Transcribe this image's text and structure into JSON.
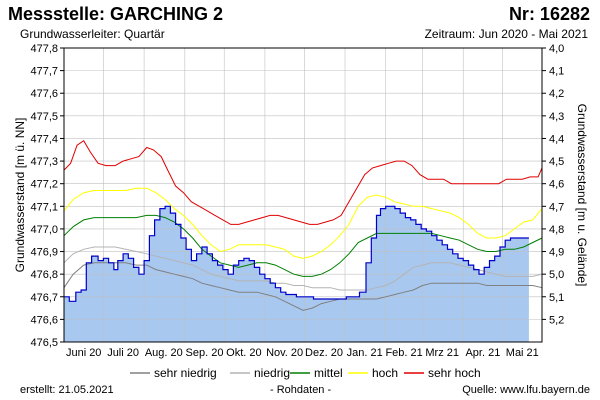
{
  "header": {
    "title": "Messstelle: GARCHING 2",
    "number": "Nr: 16282",
    "aquifer": "Grundwasserleiter: Quartär",
    "period": "Zeitraum: Jun 2020 - Mai 2021"
  },
  "footer": {
    "created": "erstellt:  21.05.2021",
    "raw": "- Rohdaten -",
    "source": "Quelle: www.lfu.bayern.de"
  },
  "chart_data": {
    "type": "line",
    "ylabel": "Grundwasserstand [m ü. NN]",
    "y2label": "Grundwasserstand [m u. Gelände]",
    "ylim": [
      476.5,
      477.8
    ],
    "y2lim": [
      5.3,
      4.0
    ],
    "xlim": [
      "2020-06-01",
      "2021-05-31"
    ],
    "yticks": [
      "476,5",
      "476,6",
      "476,7",
      "476,8",
      "476,9",
      "477,0",
      "477,1",
      "477,2",
      "477,3",
      "477,4",
      "477,5",
      "477,6",
      "477,7",
      "477,8"
    ],
    "y2ticks": [
      "4,0",
      "4,1",
      "4,2",
      "4,3",
      "4,4",
      "4,5",
      "4,6",
      "4,7",
      "4,8",
      "4,9",
      "5,0",
      "5,1",
      "5,2"
    ],
    "xticks": [
      "Juni 20",
      "Juli 20",
      "Aug. 20",
      "Sep. 20",
      "Okt. 20",
      "Nov. 20",
      "Dez. 20",
      "Jan. 21",
      "Feb. 21",
      "Mrz 21",
      "Apr. 21",
      "Mai 21"
    ],
    "grid": true,
    "legend_position": "bottom",
    "legend": [
      {
        "label": "sehr niedrig",
        "color": "#808080"
      },
      {
        "label": "niedrig",
        "color": "#b4b4b4"
      },
      {
        "label": "mittel",
        "color": "#008000"
      },
      {
        "label": "hoch",
        "color": "#ffff00"
      },
      {
        "label": "sehr hoch",
        "color": "#e00000"
      }
    ],
    "area_color": "#a8c8f0",
    "measured_color": "#0000c8",
    "series": [
      {
        "name": "Grundwasserstand",
        "role": "measured",
        "x": [
          "2020-06-01",
          "2020-06-05",
          "2020-06-10",
          "2020-06-14",
          "2020-06-18",
          "2020-06-22",
          "2020-06-27",
          "2020-07-01",
          "2020-07-05",
          "2020-07-09",
          "2020-07-12",
          "2020-07-16",
          "2020-07-20",
          "2020-07-24",
          "2020-07-28",
          "2020-08-01",
          "2020-08-05",
          "2020-08-09",
          "2020-08-13",
          "2020-08-17",
          "2020-08-21",
          "2020-08-25",
          "2020-08-29",
          "2020-09-02",
          "2020-09-06",
          "2020-09-10",
          "2020-09-14",
          "2020-09-18",
          "2020-09-22",
          "2020-09-26",
          "2020-09-30",
          "2020-10-04",
          "2020-10-08",
          "2020-10-12",
          "2020-10-16",
          "2020-10-20",
          "2020-10-24",
          "2020-10-28",
          "2020-11-01",
          "2020-11-05",
          "2020-11-09",
          "2020-11-13",
          "2020-11-17",
          "2020-11-21",
          "2020-11-25",
          "2020-11-29",
          "2020-12-03",
          "2020-12-08",
          "2020-12-13",
          "2020-12-18",
          "2020-12-23",
          "2020-12-28",
          "2021-01-02",
          "2021-01-07",
          "2021-01-12",
          "2021-01-17",
          "2021-01-21",
          "2021-01-25",
          "2021-01-28",
          "2021-02-01",
          "2021-02-04",
          "2021-02-08",
          "2021-02-12",
          "2021-02-16",
          "2021-02-20",
          "2021-02-24",
          "2021-02-28",
          "2021-03-04",
          "2021-03-08",
          "2021-03-12",
          "2021-03-16",
          "2021-03-20",
          "2021-03-24",
          "2021-03-28",
          "2021-04-01",
          "2021-04-05",
          "2021-04-09",
          "2021-04-13",
          "2021-04-17",
          "2021-04-21",
          "2021-04-25",
          "2021-04-29",
          "2021-05-03",
          "2021-05-07",
          "2021-05-10",
          "2021-05-13",
          "2021-05-16",
          "2021-05-19",
          "2021-05-21"
        ],
        "y": [
          476.7,
          476.68,
          476.72,
          476.73,
          476.85,
          476.88,
          476.86,
          476.87,
          476.85,
          476.82,
          476.86,
          476.89,
          476.87,
          476.83,
          476.8,
          476.86,
          476.97,
          477.04,
          477.09,
          477.1,
          477.07,
          477.02,
          476.96,
          476.91,
          476.86,
          476.89,
          476.92,
          476.89,
          476.86,
          476.84,
          476.82,
          476.8,
          476.84,
          476.86,
          476.87,
          476.86,
          476.83,
          476.8,
          476.78,
          476.76,
          476.74,
          476.72,
          476.71,
          476.71,
          476.7,
          476.7,
          476.7,
          476.69,
          476.69,
          476.69,
          476.69,
          476.69,
          476.7,
          476.7,
          476.72,
          476.85,
          476.96,
          477.06,
          477.09,
          477.1,
          477.1,
          477.09,
          477.07,
          477.05,
          477.04,
          477.02,
          477.0,
          476.99,
          476.97,
          476.95,
          476.93,
          476.91,
          476.89,
          476.87,
          476.86,
          476.84,
          476.82,
          476.8,
          476.83,
          476.86,
          476.88,
          476.92,
          476.95,
          476.96,
          476.96,
          476.96,
          476.96,
          476.96,
          476.96
        ]
      },
      {
        "name": "sehr hoch",
        "role": "sehr hoch",
        "x": [
          "2020-06-01",
          "2020-06-06",
          "2020-06-11",
          "2020-06-16",
          "2020-06-21",
          "2020-06-27",
          "2020-07-03",
          "2020-07-10",
          "2020-07-16",
          "2020-07-22",
          "2020-07-28",
          "2020-08-03",
          "2020-08-08",
          "2020-08-14",
          "2020-08-19",
          "2020-08-25",
          "2020-08-31",
          "2020-09-06",
          "2020-09-12",
          "2020-09-18",
          "2020-09-24",
          "2020-09-30",
          "2020-10-06",
          "2020-10-12",
          "2020-10-18",
          "2020-10-24",
          "2020-10-30",
          "2020-11-05",
          "2020-11-11",
          "2020-11-17",
          "2020-11-23",
          "2020-11-29",
          "2020-12-05",
          "2020-12-11",
          "2020-12-17",
          "2020-12-23",
          "2020-12-29",
          "2021-01-04",
          "2021-01-10",
          "2021-01-16",
          "2021-01-22",
          "2021-01-28",
          "2021-02-03",
          "2021-02-09",
          "2021-02-15",
          "2021-02-21",
          "2021-02-27",
          "2021-03-05",
          "2021-03-11",
          "2021-03-17",
          "2021-03-23",
          "2021-03-29",
          "2021-04-04",
          "2021-04-10",
          "2021-04-16",
          "2021-04-22",
          "2021-04-28",
          "2021-05-04",
          "2021-05-10",
          "2021-05-16",
          "2021-05-22",
          "2021-05-28",
          "2021-05-31"
        ],
        "y": [
          477.26,
          477.29,
          477.37,
          477.39,
          477.34,
          477.29,
          477.28,
          477.28,
          477.3,
          477.31,
          477.32,
          477.36,
          477.35,
          477.32,
          477.26,
          477.19,
          477.16,
          477.12,
          477.1,
          477.08,
          477.06,
          477.04,
          477.02,
          477.02,
          477.03,
          477.04,
          477.05,
          477.06,
          477.06,
          477.05,
          477.04,
          477.03,
          477.02,
          477.02,
          477.03,
          477.04,
          477.06,
          477.12,
          477.18,
          477.24,
          477.27,
          477.28,
          477.29,
          477.3,
          477.3,
          477.28,
          477.24,
          477.22,
          477.22,
          477.22,
          477.2,
          477.2,
          477.2,
          477.2,
          477.2,
          477.2,
          477.2,
          477.22,
          477.22,
          477.22,
          477.23,
          477.23,
          477.27
        ]
      },
      {
        "name": "hoch",
        "role": "hoch",
        "x": [
          "2020-06-01",
          "2020-06-08",
          "2020-06-16",
          "2020-06-24",
          "2020-07-02",
          "2020-07-10",
          "2020-07-18",
          "2020-07-26",
          "2020-08-03",
          "2020-08-10",
          "2020-08-17",
          "2020-08-24",
          "2020-08-31",
          "2020-09-07",
          "2020-09-14",
          "2020-09-21",
          "2020-09-28",
          "2020-10-05",
          "2020-10-12",
          "2020-10-19",
          "2020-10-26",
          "2020-11-02",
          "2020-11-09",
          "2020-11-16",
          "2020-11-23",
          "2020-11-30",
          "2020-12-07",
          "2020-12-14",
          "2020-12-21",
          "2020-12-28",
          "2021-01-04",
          "2021-01-11",
          "2021-01-18",
          "2021-01-25",
          "2021-02-01",
          "2021-02-08",
          "2021-02-15",
          "2021-02-22",
          "2021-03-01",
          "2021-03-08",
          "2021-03-15",
          "2021-03-22",
          "2021-03-29",
          "2021-04-05",
          "2021-04-12",
          "2021-04-19",
          "2021-04-26",
          "2021-05-03",
          "2021-05-10",
          "2021-05-17",
          "2021-05-24",
          "2021-05-31"
        ],
        "y": [
          477.08,
          477.13,
          477.16,
          477.17,
          477.17,
          477.17,
          477.17,
          477.18,
          477.18,
          477.16,
          477.13,
          477.09,
          477.06,
          477.02,
          476.97,
          476.93,
          476.9,
          476.91,
          476.93,
          476.93,
          476.93,
          476.93,
          476.92,
          476.91,
          476.88,
          476.87,
          476.88,
          476.9,
          476.93,
          476.97,
          477.02,
          477.1,
          477.14,
          477.15,
          477.14,
          477.12,
          477.11,
          477.1,
          477.1,
          477.09,
          477.08,
          477.07,
          477.05,
          477.02,
          476.98,
          476.96,
          476.96,
          476.97,
          477.0,
          477.03,
          477.04,
          477.09
        ]
      },
      {
        "name": "mittel",
        "role": "mittel",
        "x": [
          "2020-06-01",
          "2020-06-08",
          "2020-06-16",
          "2020-06-24",
          "2020-07-02",
          "2020-07-10",
          "2020-07-18",
          "2020-07-26",
          "2020-08-03",
          "2020-08-10",
          "2020-08-17",
          "2020-08-24",
          "2020-08-31",
          "2020-09-07",
          "2020-09-14",
          "2020-09-21",
          "2020-09-28",
          "2020-10-05",
          "2020-10-12",
          "2020-10-19",
          "2020-10-26",
          "2020-11-02",
          "2020-11-09",
          "2020-11-16",
          "2020-11-23",
          "2020-11-30",
          "2020-12-07",
          "2020-12-14",
          "2020-12-21",
          "2020-12-28",
          "2021-01-04",
          "2021-01-11",
          "2021-01-18",
          "2021-01-25",
          "2021-02-01",
          "2021-02-08",
          "2021-02-15",
          "2021-02-22",
          "2021-03-01",
          "2021-03-08",
          "2021-03-15",
          "2021-03-22",
          "2021-03-29",
          "2021-04-05",
          "2021-04-12",
          "2021-04-19",
          "2021-04-26",
          "2021-05-03",
          "2021-05-10",
          "2021-05-17",
          "2021-05-24",
          "2021-05-31"
        ],
        "y": [
          476.97,
          477.01,
          477.04,
          477.05,
          477.05,
          477.05,
          477.05,
          477.05,
          477.06,
          477.06,
          477.05,
          477.03,
          477.0,
          476.96,
          476.91,
          476.88,
          476.85,
          476.84,
          476.83,
          476.84,
          476.85,
          476.85,
          476.84,
          476.82,
          476.8,
          476.79,
          476.79,
          476.8,
          476.82,
          476.85,
          476.89,
          476.94,
          476.96,
          476.98,
          476.98,
          476.98,
          476.98,
          476.98,
          476.98,
          476.98,
          476.97,
          476.96,
          476.95,
          476.93,
          476.91,
          476.9,
          476.9,
          476.91,
          476.91,
          476.92,
          476.94,
          476.96
        ]
      },
      {
        "name": "niedrig",
        "role": "niedrig",
        "x": [
          "2020-06-01",
          "2020-06-08",
          "2020-06-16",
          "2020-06-24",
          "2020-07-02",
          "2020-07-10",
          "2020-07-18",
          "2020-07-26",
          "2020-08-03",
          "2020-08-10",
          "2020-08-17",
          "2020-08-24",
          "2020-08-31",
          "2020-09-07",
          "2020-09-14",
          "2020-09-21",
          "2020-09-28",
          "2020-10-05",
          "2020-10-12",
          "2020-10-19",
          "2020-10-26",
          "2020-11-02",
          "2020-11-09",
          "2020-11-16",
          "2020-11-23",
          "2020-11-30",
          "2020-12-07",
          "2020-12-14",
          "2020-12-21",
          "2020-12-28",
          "2021-01-04",
          "2021-01-11",
          "2021-01-18",
          "2021-01-25",
          "2021-02-01",
          "2021-02-08",
          "2021-02-15",
          "2021-02-22",
          "2021-03-01",
          "2021-03-08",
          "2021-03-15",
          "2021-03-22",
          "2021-03-29",
          "2021-04-05",
          "2021-04-12",
          "2021-04-19",
          "2021-04-26",
          "2021-05-03",
          "2021-05-10",
          "2021-05-17",
          "2021-05-24",
          "2021-05-31"
        ],
        "y": [
          476.85,
          476.89,
          476.91,
          476.92,
          476.92,
          476.92,
          476.91,
          476.9,
          476.89,
          476.88,
          476.87,
          476.86,
          476.85,
          476.84,
          476.82,
          476.8,
          476.79,
          476.78,
          476.77,
          476.77,
          476.77,
          476.77,
          476.76,
          476.76,
          476.75,
          476.75,
          476.74,
          476.74,
          476.74,
          476.73,
          476.73,
          476.73,
          476.73,
          476.74,
          476.75,
          476.77,
          476.8,
          476.83,
          476.84,
          476.85,
          476.85,
          476.85,
          476.84,
          476.83,
          476.82,
          476.81,
          476.8,
          476.79,
          476.79,
          476.79,
          476.79,
          476.8
        ]
      },
      {
        "name": "sehr niedrig",
        "role": "sehr niedrig",
        "x": [
          "2020-06-01",
          "2020-06-08",
          "2020-06-16",
          "2020-06-24",
          "2020-07-02",
          "2020-07-10",
          "2020-07-18",
          "2020-07-26",
          "2020-08-03",
          "2020-08-10",
          "2020-08-17",
          "2020-08-24",
          "2020-08-31",
          "2020-09-07",
          "2020-09-14",
          "2020-09-21",
          "2020-09-28",
          "2020-10-05",
          "2020-10-12",
          "2020-10-19",
          "2020-10-26",
          "2020-11-02",
          "2020-11-09",
          "2020-11-16",
          "2020-11-23",
          "2020-11-30",
          "2020-12-07",
          "2020-12-14",
          "2020-12-21",
          "2020-12-28",
          "2021-01-04",
          "2021-01-11",
          "2021-01-18",
          "2021-01-25",
          "2021-02-01",
          "2021-02-08",
          "2021-02-15",
          "2021-02-22",
          "2021-03-01",
          "2021-03-08",
          "2021-03-15",
          "2021-03-22",
          "2021-03-29",
          "2021-04-05",
          "2021-04-12",
          "2021-04-19",
          "2021-04-26",
          "2021-05-03",
          "2021-05-10",
          "2021-05-17",
          "2021-05-24",
          "2021-05-31"
        ],
        "y": [
          476.74,
          476.8,
          476.84,
          476.85,
          476.85,
          476.85,
          476.85,
          476.84,
          476.84,
          476.82,
          476.81,
          476.8,
          476.79,
          476.78,
          476.76,
          476.75,
          476.74,
          476.73,
          476.72,
          476.72,
          476.72,
          476.71,
          476.7,
          476.68,
          476.66,
          476.64,
          476.65,
          476.67,
          476.68,
          476.69,
          476.69,
          476.69,
          476.69,
          476.69,
          476.7,
          476.71,
          476.72,
          476.73,
          476.75,
          476.76,
          476.76,
          476.76,
          476.76,
          476.76,
          476.76,
          476.75,
          476.75,
          476.75,
          476.75,
          476.75,
          476.75,
          476.74
        ]
      }
    ]
  }
}
